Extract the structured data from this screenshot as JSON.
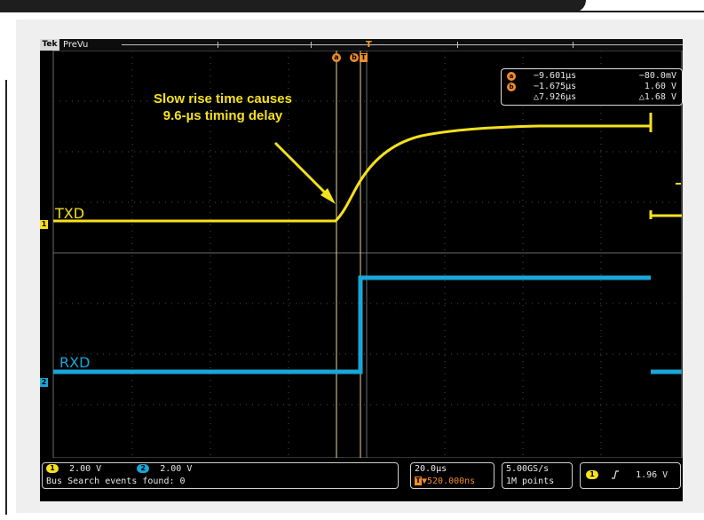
{
  "colors": {
    "ch1": "#f5e11e",
    "ch2": "#1aa6d8",
    "cursor": "#f08c2a",
    "grid": "#5a5a5a",
    "scope_bg": "#000000"
  },
  "header": {
    "logo": "Tek",
    "mode": "PreVu",
    "trigger_icon": "T"
  },
  "cursor_tags": {
    "a": "a",
    "b": "b",
    "trigger": "T"
  },
  "readout": {
    "a": {
      "id": "a",
      "time": "−9.601µs",
      "value": "−80.0mV"
    },
    "b": {
      "id": "b",
      "time": "−1.675µs",
      "value": "1.60 V"
    },
    "delta": {
      "time": "△7.926µs",
      "value": "△1.68 V"
    }
  },
  "annotation": {
    "line1": "Slow rise time causes",
    "line2": "9.6-µs timing delay"
  },
  "channels": {
    "ch1": {
      "marker": "1",
      "label": "TXD",
      "scale": "2.00 V"
    },
    "ch2": {
      "marker": "2",
      "label": "RXD",
      "scale": "2.00 V"
    }
  },
  "status": {
    "bus_search": "Bus Search events found: 0"
  },
  "timebase": {
    "scale": "20.0µs",
    "position": "▼520.000ns"
  },
  "acquisition": {
    "rate": "5.00GS/s",
    "record": "1M points"
  },
  "trigger": {
    "source": "1",
    "slope_icon": "rising-edge-icon",
    "level": "1.96 V"
  }
}
